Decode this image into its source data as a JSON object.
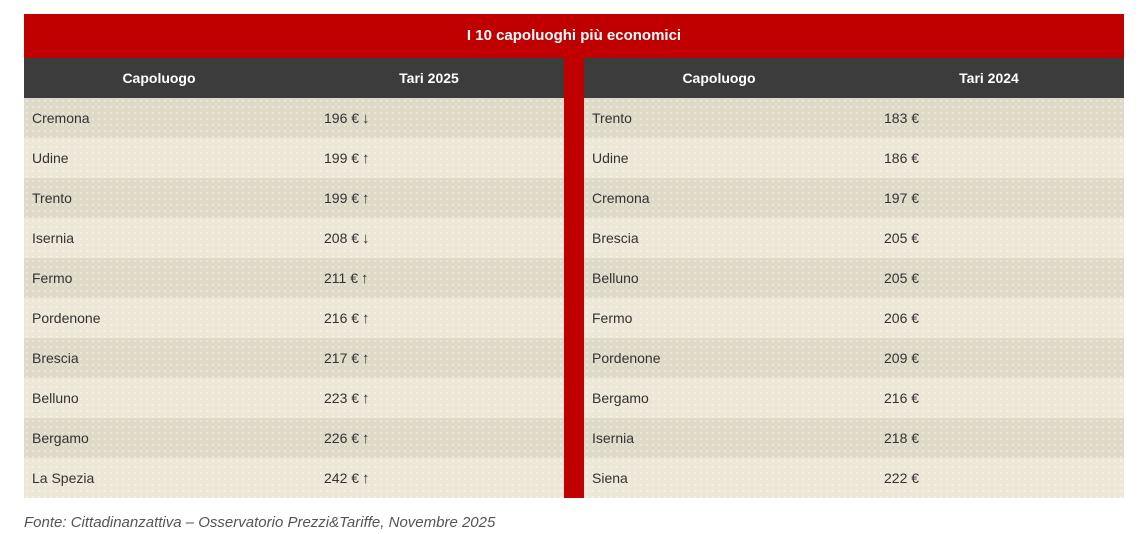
{
  "title": "I 10 capoluoghi più economici",
  "left_table": {
    "headers": [
      "Capoluogo",
      "Tari 2025"
    ],
    "rows": [
      {
        "city": "Cremona",
        "value": "196 €",
        "arrow": "↓"
      },
      {
        "city": "Udine",
        "value": "199 €",
        "arrow": "↑"
      },
      {
        "city": "Trento",
        "value": "199 €",
        "arrow": "↑"
      },
      {
        "city": "Isernia",
        "value": "208 €",
        "arrow": "↓"
      },
      {
        "city": "Fermo",
        "value": "211 €",
        "arrow": "↑"
      },
      {
        "city": "Pordenone",
        "value": "216 €",
        "arrow": "↑"
      },
      {
        "city": "Brescia",
        "value": "217 €",
        "arrow": "↑"
      },
      {
        "city": "Belluno",
        "value": "223 €",
        "arrow": "↑"
      },
      {
        "city": "Bergamo",
        "value": "226 €",
        "arrow": "↑"
      },
      {
        "city": "La Spezia",
        "value": "242 €",
        "arrow": "↑"
      }
    ]
  },
  "right_table": {
    "headers": [
      "Capoluogo",
      "Tari 2024"
    ],
    "rows": [
      {
        "city": "Trento",
        "value": "183 €"
      },
      {
        "city": "Udine",
        "value": "186 €"
      },
      {
        "city": "Cremona",
        "value": "197 €"
      },
      {
        "city": "Brescia",
        "value": "205 €"
      },
      {
        "city": "Belluno",
        "value": "205 €"
      },
      {
        "city": "Fermo",
        "value": "206 €"
      },
      {
        "city": "Pordenone",
        "value": "209 €"
      },
      {
        "city": "Bergamo",
        "value": "216 €"
      },
      {
        "city": "Isernia",
        "value": "218 €"
      },
      {
        "city": "Siena",
        "value": "222 €"
      }
    ]
  },
  "source": "Fonte: Cittadinanzattiva – Osservatorio Prezzi&Tariffe, Novembre 2025",
  "colors": {
    "accent": "#c00000",
    "header_bg": "#3c3c3c",
    "row_odd": "#dfdac8",
    "row_even": "#ece7d6"
  }
}
